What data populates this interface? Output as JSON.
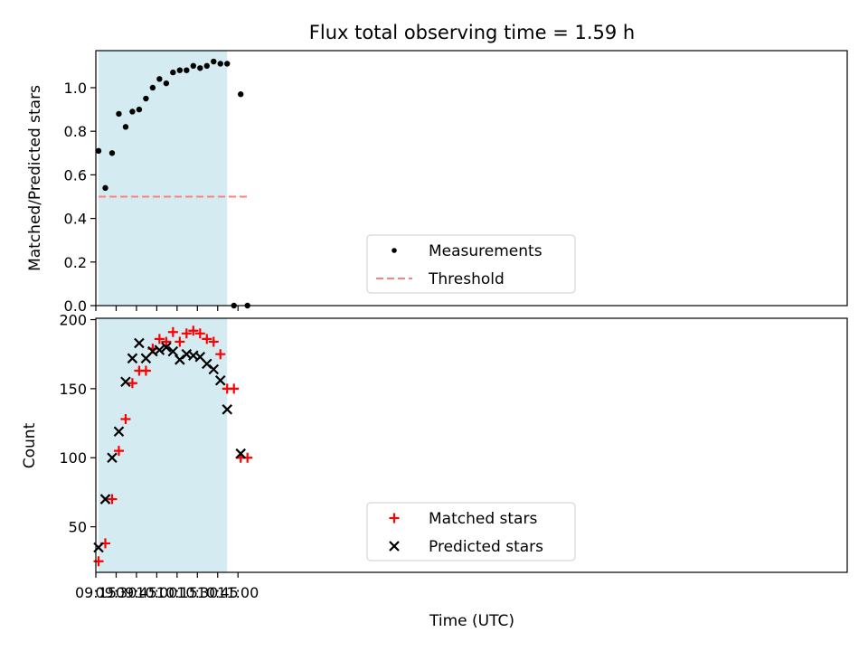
{
  "title": "Flux total observing time = 1.59 h",
  "colors": {
    "span": "#add8e6",
    "measurement": "#000000",
    "threshold": "#ff7f7f",
    "matched": "#ff0000",
    "predicted": "#000000"
  },
  "chart_data": [
    {
      "type": "scatter",
      "ylabel": "Matched/Predicted stars",
      "ylim": [
        0,
        1.17
      ],
      "yticks": [
        "0.0",
        "0.2",
        "0.4",
        "0.6",
        "0.8",
        "1.0"
      ],
      "ytick_values": [
        0,
        0.2,
        0.4,
        0.6,
        0.8,
        1.0
      ],
      "xlim_minutes": [
        555,
        1110
      ],
      "observing_window": [
        "09:17",
        "10:52"
      ],
      "legend": {
        "placement": "lower-center",
        "entries": [
          "Measurements",
          "Threshold"
        ]
      },
      "series": [
        {
          "name": "Measurements",
          "marker": "dot",
          "x": [
            "09:17",
            "09:22",
            "09:27",
            "09:32",
            "09:37",
            "09:42",
            "09:47",
            "09:52",
            "09:57",
            "10:02",
            "10:07",
            "10:12",
            "10:17",
            "10:22",
            "10:27",
            "10:32",
            "10:37",
            "10:42",
            "10:47",
            "10:52",
            "10:57",
            "11:02",
            "11:07"
          ],
          "y": [
            0.71,
            0.54,
            0.7,
            0.88,
            0.82,
            0.89,
            0.9,
            0.95,
            1.0,
            1.04,
            1.02,
            1.07,
            1.08,
            1.08,
            1.1,
            1.09,
            1.1,
            1.12,
            1.11,
            1.11,
            0.0,
            0.97,
            0.0
          ]
        },
        {
          "name": "Threshold",
          "marker": "dashed-line",
          "x": [
            "09:17",
            "11:07"
          ],
          "y": [
            0.5,
            0.5
          ]
        }
      ]
    },
    {
      "type": "scatter",
      "xlabel": "Time (UTC)",
      "ylabel": "Count",
      "ylim": [
        17,
        201
      ],
      "yticks": [
        "50",
        "100",
        "150",
        "200"
      ],
      "ytick_values": [
        50,
        100,
        150,
        200
      ],
      "xticks": [
        "09:15",
        "09:30",
        "09:45",
        "10:00",
        "10:15",
        "10:30",
        "10:45",
        "11:00"
      ],
      "xtick_minutes": [
        555,
        570,
        585,
        600,
        615,
        630,
        645,
        660
      ],
      "xlim_minutes": [
        555,
        1110
      ],
      "observing_window": [
        "09:17",
        "10:52"
      ],
      "legend": {
        "placement": "lower-center",
        "entries": [
          "Matched stars",
          "Predicted stars"
        ]
      },
      "series": [
        {
          "name": "Matched stars",
          "marker": "plus",
          "x": [
            "09:17",
            "09:22",
            "09:27",
            "09:32",
            "09:37",
            "09:42",
            "09:47",
            "09:52",
            "09:57",
            "10:02",
            "10:07",
            "10:12",
            "10:17",
            "10:22",
            "10:27",
            "10:32",
            "10:37",
            "10:42",
            "10:47",
            "10:52",
            "10:57",
            "11:02",
            "11:07"
          ],
          "y": [
            25,
            38,
            70,
            105,
            128,
            154,
            163,
            163,
            179,
            186,
            184,
            191,
            184,
            190,
            192,
            190,
            186,
            184,
            175,
            150,
            150,
            100,
            100
          ]
        },
        {
          "name": "Predicted stars",
          "marker": "x",
          "x": [
            "09:17",
            "09:22",
            "09:27",
            "09:32",
            "09:37",
            "09:42",
            "09:47",
            "09:52",
            "09:57",
            "10:02",
            "10:07",
            "10:12",
            "10:17",
            "10:22",
            "10:27",
            "10:32",
            "10:37",
            "10:42",
            "10:47",
            "10:52",
            "11:02"
          ],
          "y": [
            35,
            70,
            100,
            119,
            155,
            172,
            183,
            172,
            177,
            178,
            180,
            177,
            171,
            175,
            174,
            173,
            168,
            164,
            156,
            135,
            103
          ]
        }
      ]
    }
  ]
}
